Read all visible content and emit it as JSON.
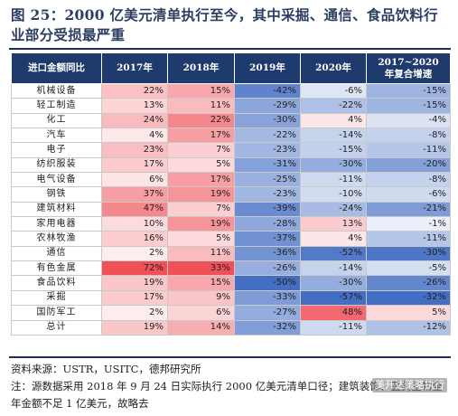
{
  "title": "图 25：2000 亿美元清单执行至今，其中采掘、通信、食品饮料行业部分受损最严重",
  "chart_data": {
    "type": "table",
    "columns": [
      "进口金额同比",
      "2017年",
      "2018年",
      "2019年",
      "2020年",
      "2017~2020\n年复合增速"
    ],
    "rows": [
      {
        "name": "机械设备",
        "values": [
          "22%",
          "15%",
          "-42%",
          "-6%",
          "-15%"
        ]
      },
      {
        "name": "轻工制造",
        "values": [
          "13%",
          "11%",
          "-29%",
          "-22%",
          "-15%"
        ]
      },
      {
        "name": "化工",
        "values": [
          "24%",
          "22%",
          "-30%",
          "4%",
          "-4%"
        ]
      },
      {
        "name": "汽车",
        "values": [
          "4%",
          "17%",
          "-22%",
          "-14%",
          "-8%"
        ]
      },
      {
        "name": "电子",
        "values": [
          "23%",
          "7%",
          "-23%",
          "-15%",
          "-11%"
        ]
      },
      {
        "name": "纺织服装",
        "values": [
          "17%",
          "5%",
          "-31%",
          "-30%",
          "-20%"
        ]
      },
      {
        "name": "电气设备",
        "values": [
          "6%",
          "17%",
          "-25%",
          "-11%",
          "-8%"
        ]
      },
      {
        "name": "钢铁",
        "values": [
          "37%",
          "19%",
          "-23%",
          "-10%",
          "-6%"
        ]
      },
      {
        "name": "建筑材料",
        "values": [
          "47%",
          "7%",
          "-39%",
          "-24%",
          "-21%"
        ]
      },
      {
        "name": "家用电器",
        "values": [
          "10%",
          "19%",
          "-28%",
          "13%",
          "-1%"
        ]
      },
      {
        "name": "农林牧渔",
        "values": [
          "16%",
          "5%",
          "-37%",
          "4%",
          "-11%"
        ]
      },
      {
        "name": "通信",
        "values": [
          "2%",
          "11%",
          "-36%",
          "-52%",
          "-30%"
        ]
      },
      {
        "name": "有色金属",
        "values": [
          "72%",
          "33%",
          "-26%",
          "-14%",
          "-5%"
        ]
      },
      {
        "name": "食品饮料",
        "values": [
          "19%",
          "15%",
          "-50%",
          "-30%",
          "-26%"
        ]
      },
      {
        "name": "采掘",
        "values": [
          "17%",
          "9%",
          "-33%",
          "-57%",
          "-32%"
        ]
      },
      {
        "name": "国防军工",
        "values": [
          "2%",
          "6%",
          "-27%",
          "48%",
          "5%"
        ]
      },
      {
        "name": "总计",
        "values": [
          "19%",
          "14%",
          "-32%",
          "-11%",
          "-12%"
        ]
      }
    ]
  },
  "source_line": "资料来源：USTR，USITC，德邦研究所",
  "note_line": "注：源数据采用 2018 年 9 月 24 日实际执行 2000 亿美元清单口径；建筑装饰、医药生物全年金额不足 1 亿美元，故略去",
  "watermark": "美开达策略执行",
  "colors": {
    "header_bg": "#1f3a6d",
    "title": "#2c3e63",
    "positive": "#e8535c",
    "negative": "#4a72c4"
  }
}
